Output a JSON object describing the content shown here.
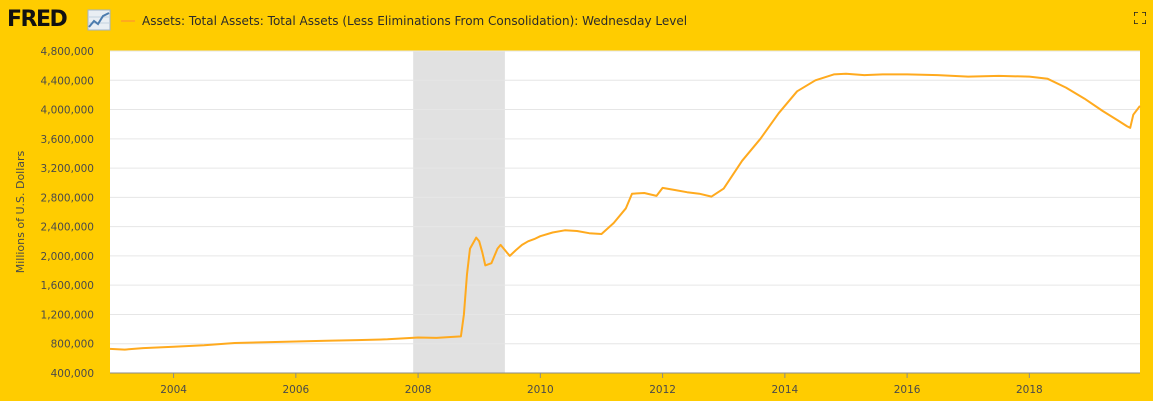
{
  "header": {
    "logo_text": "FRED",
    "logo_icon": "line-graph-icon",
    "series_title": "Assets: Total Assets: Total Assets (Less Eliminations From Consolidation): Wednesday Level",
    "fullscreen_icon": "fullscreen-icon"
  },
  "colors": {
    "background": "#ffcc00",
    "line": "#ffaa1e",
    "plot_area": "#ffffff",
    "recession": "#e1e1e1",
    "grid": "#e6e6e6"
  },
  "chart_data": {
    "type": "line",
    "title": "Assets: Total Assets: Total Assets (Less Eliminations From Consolidation): Wednesday Level",
    "xlabel": "",
    "ylabel": "Millions of U.S. Dollars",
    "xlim": [
      2002.96,
      2019.81
    ],
    "ylim": [
      400000,
      4800000
    ],
    "grid": true,
    "legend": "top-left",
    "x_ticks": [
      2004,
      2006,
      2008,
      2010,
      2012,
      2014,
      2016,
      2018
    ],
    "y_ticks": [
      400000,
      800000,
      1200000,
      1600000,
      2000000,
      2400000,
      2800000,
      3200000,
      3600000,
      4000000,
      4400000,
      4800000
    ],
    "y_tick_labels": [
      "400,000",
      "800,000",
      "1,200,000",
      "1,600,000",
      "2,000,000",
      "2,400,000",
      "2,800,000",
      "3,200,000",
      "3,600,000",
      "4,000,000",
      "4,400,000",
      "4,800,000"
    ],
    "recessions": [
      {
        "start": 2007.92,
        "end": 2009.42
      }
    ],
    "series": [
      {
        "name": "Assets: Total Assets: Total Assets (Less Eliminations From Consolidation): Wednesday Level",
        "x": [
          2002.96,
          2003.2,
          2003.5,
          2004.0,
          2004.5,
          2005.0,
          2005.5,
          2006.0,
          2006.5,
          2007.0,
          2007.5,
          2007.9,
          2008.0,
          2008.3,
          2008.5,
          2008.7,
          2008.75,
          2008.8,
          2008.85,
          2008.95,
          2009.0,
          2009.05,
          2009.1,
          2009.2,
          2009.3,
          2009.35,
          2009.4,
          2009.45,
          2009.5,
          2009.6,
          2009.7,
          2009.8,
          2009.9,
          2010.0,
          2010.2,
          2010.4,
          2010.6,
          2010.8,
          2011.0,
          2011.2,
          2011.4,
          2011.5,
          2011.7,
          2011.9,
          2012.0,
          2012.2,
          2012.4,
          2012.6,
          2012.8,
          2013.0,
          2013.3,
          2013.6,
          2013.9,
          2014.2,
          2014.5,
          2014.8,
          2015.0,
          2015.3,
          2015.6,
          2016.0,
          2016.5,
          2017.0,
          2017.5,
          2018.0,
          2018.3,
          2018.6,
          2018.9,
          2019.2,
          2019.45,
          2019.6,
          2019.65,
          2019.7,
          2019.81
        ],
        "values": [
          730000,
          720000,
          740000,
          760000,
          780000,
          810000,
          820000,
          830000,
          840000,
          850000,
          860000,
          880000,
          885000,
          880000,
          890000,
          900000,
          1200000,
          1750000,
          2100000,
          2250000,
          2200000,
          2050000,
          1870000,
          1900000,
          2100000,
          2150000,
          2100000,
          2050000,
          2000000,
          2080000,
          2150000,
          2200000,
          2230000,
          2270000,
          2320000,
          2350000,
          2340000,
          2310000,
          2300000,
          2450000,
          2650000,
          2850000,
          2860000,
          2820000,
          2930000,
          2900000,
          2870000,
          2850000,
          2810000,
          2920000,
          3300000,
          3600000,
          3950000,
          4250000,
          4400000,
          4480000,
          4490000,
          4470000,
          4480000,
          4480000,
          4470000,
          4450000,
          4460000,
          4450000,
          4420000,
          4300000,
          4150000,
          3980000,
          3850000,
          3770000,
          3750000,
          3930000,
          4050000
        ]
      }
    ]
  }
}
